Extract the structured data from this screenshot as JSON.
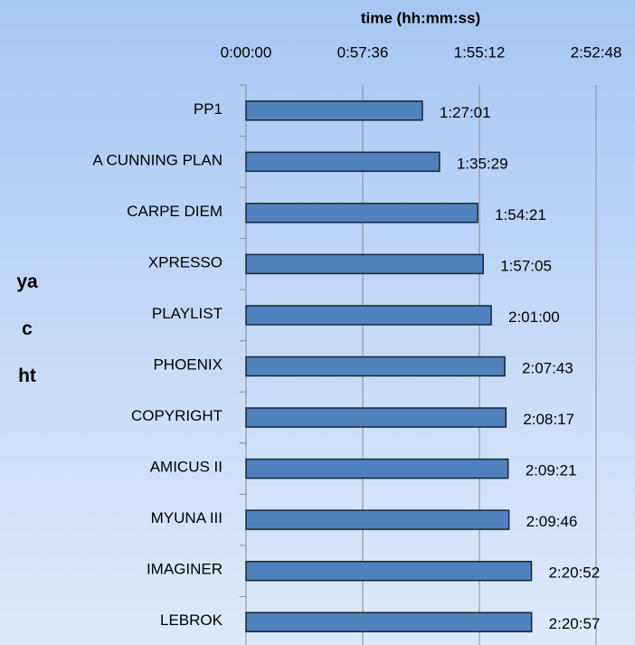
{
  "chart_data": {
    "type": "bar",
    "orientation": "horizontal",
    "x_label": "time (hh:mm:ss)",
    "y_label": "yacht",
    "categories": [
      "PP1",
      "A CUNNING PLAN",
      "CARPE DIEM",
      "XPRESSO",
      "PLAYLIST",
      "PHOENIX",
      "COPYRIGHT",
      "AMICUS II",
      "MYUNA III",
      "IMAGINER",
      "LEBROK"
    ],
    "values": [
      5221,
      5729,
      6861,
      7025,
      7260,
      7663,
      7697,
      7761,
      7786,
      8452,
      8457
    ],
    "value_labels": [
      "1:27:01",
      "1:35:29",
      "1:54:21",
      "1:57:05",
      "2:01:00",
      "2:07:43",
      "2:08:17",
      "2:09:21",
      "2:09:46",
      "2:20:52",
      "2:20:57"
    ],
    "color": "#4f81bd",
    "xlim": [
      0,
      10368
    ],
    "xticks": [
      {
        "value": 0,
        "label": "0:00:00"
      },
      {
        "value": 3456,
        "label": "0:57:36"
      },
      {
        "value": 6912,
        "label": "1:55:12"
      },
      {
        "value": 10368,
        "label": "2:52:48"
      }
    ],
    "grid": true
  }
}
